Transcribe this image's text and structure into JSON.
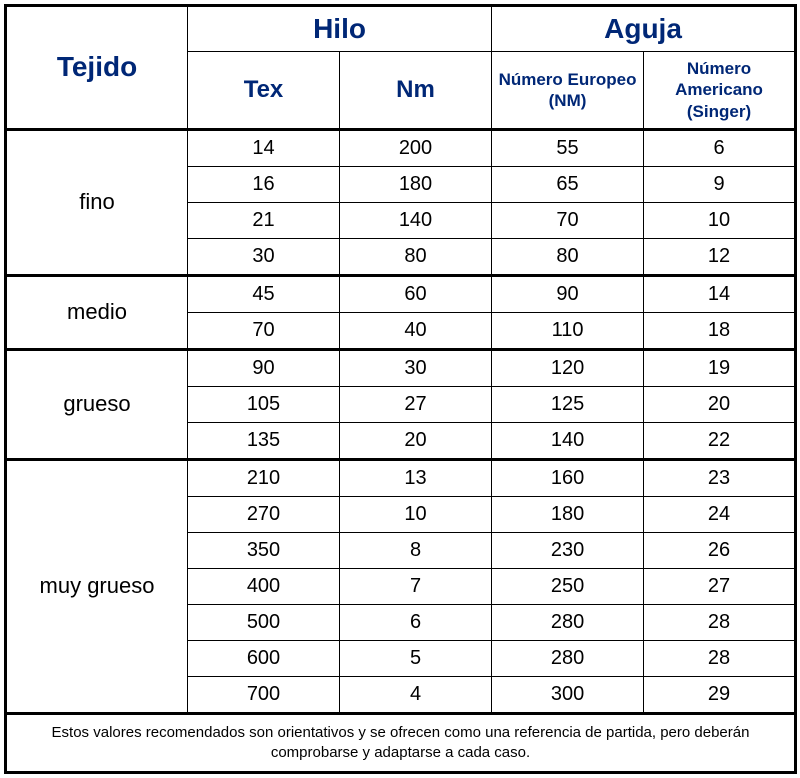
{
  "type": "table",
  "colors": {
    "header_text": "#002776",
    "body_text": "#000000",
    "border": "#000000",
    "background": "#ffffff"
  },
  "typography": {
    "header_main_fontsize": 28,
    "header_sub1_fontsize": 24,
    "header_sub2_fontsize": 17,
    "body_fontsize": 20,
    "category_fontsize": 22,
    "footnote_fontsize": 15,
    "font_family": "Arial"
  },
  "header": {
    "tejido": "Tejido",
    "hilo": "Hilo",
    "aguja": "Aguja",
    "tex": "Tex",
    "nm": "Nm",
    "num_europeo": "Número Europeo (NM)",
    "num_americano": "Número Americano (Singer)"
  },
  "sections": [
    {
      "label": "fino",
      "rows": [
        {
          "tex": "14",
          "nm": "200",
          "eur": "55",
          "amer": "6"
        },
        {
          "tex": "16",
          "nm": "180",
          "eur": "65",
          "amer": "9"
        },
        {
          "tex": "21",
          "nm": "140",
          "eur": "70",
          "amer": "10"
        },
        {
          "tex": "30",
          "nm": "80",
          "eur": "80",
          "amer": "12"
        }
      ]
    },
    {
      "label": "medio",
      "rows": [
        {
          "tex": "45",
          "nm": "60",
          "eur": "90",
          "amer": "14"
        },
        {
          "tex": "70",
          "nm": "40",
          "eur": "110",
          "amer": "18"
        }
      ]
    },
    {
      "label": "grueso",
      "rows": [
        {
          "tex": "90",
          "nm": "30",
          "eur": "120",
          "amer": "19"
        },
        {
          "tex": "105",
          "nm": "27",
          "eur": "125",
          "amer": "20"
        },
        {
          "tex": "135",
          "nm": "20",
          "eur": "140",
          "amer": "22"
        }
      ]
    },
    {
      "label": "muy grueso",
      "rows": [
        {
          "tex": "210",
          "nm": "13",
          "eur": "160",
          "amer": "23"
        },
        {
          "tex": "270",
          "nm": "10",
          "eur": "180",
          "amer": "24"
        },
        {
          "tex": "350",
          "nm": "8",
          "eur": "230",
          "amer": "26"
        },
        {
          "tex": "400",
          "nm": "7",
          "eur": "250",
          "amer": "27"
        },
        {
          "tex": "500",
          "nm": "6",
          "eur": "280",
          "amer": "28"
        },
        {
          "tex": "600",
          "nm": "5",
          "eur": "280",
          "amer": "28"
        },
        {
          "tex": "700",
          "nm": "4",
          "eur": "300",
          "amer": "29"
        }
      ]
    }
  ],
  "footnote": "Estos valores recomendados son orientativos y se ofrecen como una referencia de partida, pero deberán comprobarse y adaptarse a cada caso."
}
